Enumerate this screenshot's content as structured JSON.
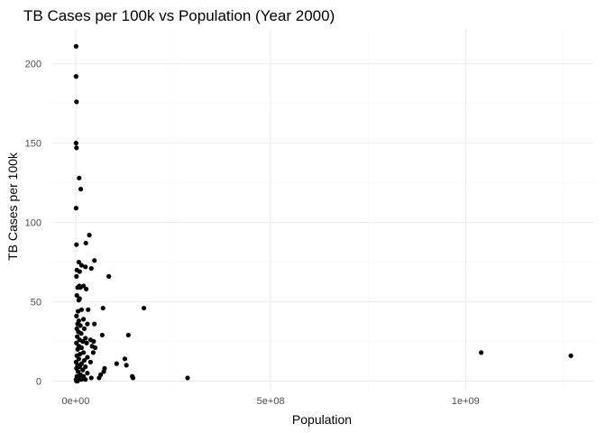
{
  "chart_data": {
    "type": "scatter",
    "title": "TB Cases per 100k vs Population (Year 2000)",
    "xlabel": "Population",
    "ylabel": "TB Cases per 100k",
    "xlim": [
      -60000000,
      1330000000
    ],
    "ylim": [
      -6,
      222
    ],
    "x_ticks": [
      0,
      500000000,
      1000000000
    ],
    "x_tick_labels": [
      "0e+00",
      "5e+08",
      "1e+09"
    ],
    "y_ticks": [
      0,
      50,
      100,
      150,
      200
    ],
    "y_tick_labels": [
      "0",
      "50",
      "100",
      "150",
      "200"
    ],
    "grid": true,
    "legend": "none",
    "point_color": "#000000",
    "points": [
      {
        "x": 1000000,
        "y": 211
      },
      {
        "x": 1000000,
        "y": 192
      },
      {
        "x": 2000000,
        "y": 176
      },
      {
        "x": 1000000,
        "y": 150
      },
      {
        "x": 2000000,
        "y": 147
      },
      {
        "x": 9000000,
        "y": 128
      },
      {
        "x": 13000000,
        "y": 121
      },
      {
        "x": 1000000,
        "y": 109
      },
      {
        "x": 35000000,
        "y": 92
      },
      {
        "x": 26000000,
        "y": 87
      },
      {
        "x": 2000000,
        "y": 86
      },
      {
        "x": 48000000,
        "y": 76
      },
      {
        "x": 8000000,
        "y": 75
      },
      {
        "x": 15000000,
        "y": 73
      },
      {
        "x": 25000000,
        "y": 72
      },
      {
        "x": 40000000,
        "y": 71
      },
      {
        "x": 3000000,
        "y": 70
      },
      {
        "x": 10000000,
        "y": 69
      },
      {
        "x": 2000000,
        "y": 66
      },
      {
        "x": 85000000,
        "y": 66
      },
      {
        "x": 9000000,
        "y": 60
      },
      {
        "x": 20000000,
        "y": 60
      },
      {
        "x": 5000000,
        "y": 59
      },
      {
        "x": 12000000,
        "y": 59
      },
      {
        "x": 27000000,
        "y": 58
      },
      {
        "x": 3000000,
        "y": 54
      },
      {
        "x": 10000000,
        "y": 52
      },
      {
        "x": 8000000,
        "y": 51
      },
      {
        "x": 175000000,
        "y": 46
      },
      {
        "x": 70000000,
        "y": 46
      },
      {
        "x": 15000000,
        "y": 45
      },
      {
        "x": 32000000,
        "y": 45
      },
      {
        "x": 6000000,
        "y": 44
      },
      {
        "x": 2000000,
        "y": 41
      },
      {
        "x": 20000000,
        "y": 39
      },
      {
        "x": 8000000,
        "y": 38
      },
      {
        "x": 5000000,
        "y": 36
      },
      {
        "x": 30000000,
        "y": 36
      },
      {
        "x": 48000000,
        "y": 36
      },
      {
        "x": 12000000,
        "y": 35
      },
      {
        "x": 3000000,
        "y": 33
      },
      {
        "x": 22000000,
        "y": 33
      },
      {
        "x": 7000000,
        "y": 31
      },
      {
        "x": 14000000,
        "y": 30
      },
      {
        "x": 68000000,
        "y": 29
      },
      {
        "x": 135000000,
        "y": 29
      },
      {
        "x": 4000000,
        "y": 28
      },
      {
        "x": 25000000,
        "y": 27
      },
      {
        "x": 10000000,
        "y": 26
      },
      {
        "x": 38000000,
        "y": 26
      },
      {
        "x": 18000000,
        "y": 25
      },
      {
        "x": 46000000,
        "y": 25
      },
      {
        "x": 2000000,
        "y": 24
      },
      {
        "x": 28000000,
        "y": 24
      },
      {
        "x": 8000000,
        "y": 22
      },
      {
        "x": 42000000,
        "y": 22
      },
      {
        "x": 15000000,
        "y": 21
      },
      {
        "x": 50000000,
        "y": 21
      },
      {
        "x": 5000000,
        "y": 20
      },
      {
        "x": 1040000000,
        "y": 18
      },
      {
        "x": 20000000,
        "y": 18
      },
      {
        "x": 45000000,
        "y": 18
      },
      {
        "x": 1270000000,
        "y": 16
      },
      {
        "x": 11000000,
        "y": 17
      },
      {
        "x": 3000000,
        "y": 16
      },
      {
        "x": 30000000,
        "y": 15
      },
      {
        "x": 126000000,
        "y": 14
      },
      {
        "x": 8000000,
        "y": 14
      },
      {
        "x": 22000000,
        "y": 13
      },
      {
        "x": 1000000,
        "y": 12
      },
      {
        "x": 38000000,
        "y": 12
      },
      {
        "x": 105000000,
        "y": 11
      },
      {
        "x": 15000000,
        "y": 11
      },
      {
        "x": 5000000,
        "y": 10
      },
      {
        "x": 130000000,
        "y": 10
      },
      {
        "x": 25000000,
        "y": 9
      },
      {
        "x": 10000000,
        "y": 9
      },
      {
        "x": 2000000,
        "y": 8
      },
      {
        "x": 74000000,
        "y": 8
      },
      {
        "x": 18000000,
        "y": 7
      },
      {
        "x": 72000000,
        "y": 6
      },
      {
        "x": 6000000,
        "y": 6
      },
      {
        "x": 30000000,
        "y": 5
      },
      {
        "x": 12000000,
        "y": 4
      },
      {
        "x": 64000000,
        "y": 4
      },
      {
        "x": 3000000,
        "y": 3
      },
      {
        "x": 145000000,
        "y": 3
      },
      {
        "x": 20000000,
        "y": 3
      },
      {
        "x": 60000000,
        "y": 2
      },
      {
        "x": 287000000,
        "y": 2
      },
      {
        "x": 8000000,
        "y": 2
      },
      {
        "x": 147000000,
        "y": 2
      },
      {
        "x": 40000000,
        "y": 2
      },
      {
        "x": 1000000,
        "y": 1
      },
      {
        "x": 15000000,
        "y": 1
      },
      {
        "x": 5000000,
        "y": 0
      },
      {
        "x": 25000000,
        "y": 1
      },
      {
        "x": 2000000,
        "y": 0
      }
    ]
  }
}
